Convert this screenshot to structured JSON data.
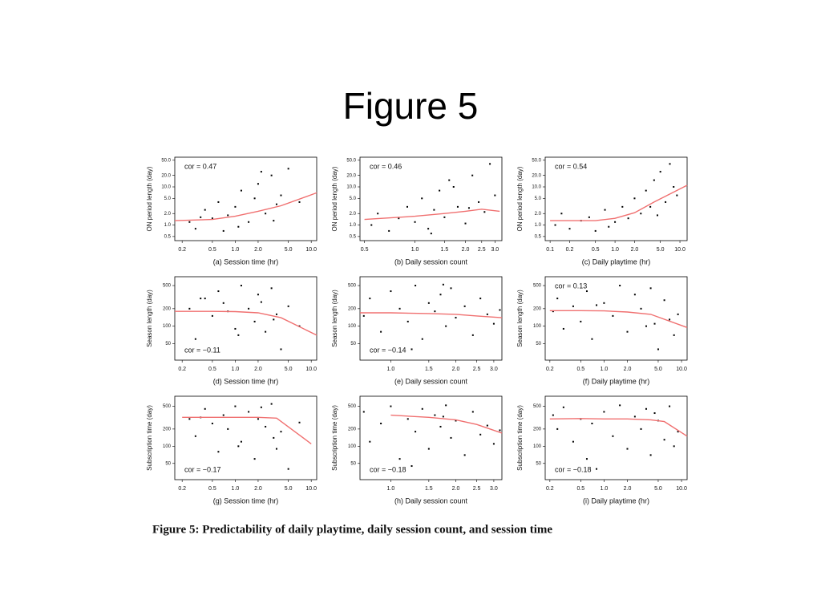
{
  "slide_title": "Figure 5",
  "caption": "Figure 5: Predictability of daily playtime, daily session count, and session time",
  "chart_data": [
    {
      "type": "scatter",
      "xlabel": "(a) Session time (hr)",
      "ylabel": "ON period length (day)",
      "annotation": "cor = 0.47",
      "annotation_corner": "top-left",
      "xscale": "log",
      "yscale": "log",
      "color": "#000000",
      "xlim": [
        0.16,
        11.8
      ],
      "ylim": [
        0.39,
        60
      ],
      "xticks": [
        0.2,
        0.5,
        {
          "value": 1,
          "label": "1.0"
        },
        {
          "value": 2,
          "label": "2.0"
        },
        {
          "value": 5,
          "label": "5.0"
        },
        {
          "value": 10,
          "label": "10.0"
        }
      ],
      "yticks": [
        0.5,
        {
          "value": 1,
          "label": "1.0"
        },
        {
          "value": 2,
          "label": "2.0"
        },
        {
          "value": 5,
          "label": "5.0"
        },
        {
          "value": 10,
          "label": "10.0"
        },
        {
          "value": 20,
          "label": "20.0"
        },
        {
          "value": 50,
          "label": "50.0"
        }
      ],
      "x": [
        0.25,
        0.3,
        0.4,
        0.5,
        0.6,
        0.7,
        0.8,
        1.0,
        1.2,
        1.5,
        1.8,
        2.0,
        2.5,
        3.0,
        3.5,
        4.0,
        5.0,
        7.0,
        0.35,
        1.1,
        2.2,
        3.2
      ],
      "values": [
        1.2,
        0.8,
        2.5,
        1.5,
        4.0,
        0.7,
        1.8,
        3.0,
        8.0,
        1.2,
        5.0,
        12.0,
        2.0,
        20.0,
        3.5,
        6.0,
        30.0,
        4.0,
        1.6,
        0.9,
        25.0,
        1.3
      ],
      "trend": {
        "color": "#f07070",
        "x": [
          0.16,
          0.5,
          1,
          2,
          4,
          11.8
        ],
        "values": [
          1.3,
          1.4,
          1.7,
          2.3,
          3.2,
          7
        ]
      }
    },
    {
      "type": "scatter",
      "xlabel": "(b) Daily session count",
      "ylabel": "ON period length (day)",
      "annotation": "cor = 0.46",
      "annotation_corner": "top-left",
      "xscale": "log",
      "yscale": "log",
      "color": "#000000",
      "xlim": [
        0.47,
        3.3
      ],
      "ylim": [
        0.39,
        60
      ],
      "xticks": [
        0.5,
        {
          "value": 1,
          "label": "1.0"
        },
        1.5,
        {
          "value": 2,
          "label": "2.0"
        },
        2.5,
        {
          "value": 3,
          "label": "3.0"
        }
      ],
      "yticks": [
        0.5,
        {
          "value": 1,
          "label": "1.0"
        },
        {
          "value": 2,
          "label": "2.0"
        },
        {
          "value": 5,
          "label": "5.0"
        },
        {
          "value": 10,
          "label": "10.0"
        },
        {
          "value": 20,
          "label": "20.0"
        },
        {
          "value": 50,
          "label": "50.0"
        }
      ],
      "x": [
        0.55,
        0.6,
        0.7,
        0.8,
        0.9,
        1.0,
        1.1,
        1.2,
        1.3,
        1.4,
        1.5,
        1.6,
        1.8,
        2.0,
        2.2,
        2.4,
        2.6,
        2.8,
        3.0,
        1.25,
        1.7,
        2.1
      ],
      "values": [
        1.0,
        2.0,
        0.7,
        1.5,
        3.0,
        1.2,
        5.0,
        0.8,
        2.5,
        8.0,
        1.6,
        15.0,
        3.0,
        1.1,
        20.0,
        4.0,
        2.2,
        40.0,
        6.0,
        0.6,
        10.0,
        2.8
      ],
      "trend": {
        "color": "#f07070",
        "x": [
          0.5,
          1,
          1.5,
          2,
          2.5,
          3.2
        ],
        "values": [
          1.4,
          1.7,
          2.0,
          2.3,
          2.6,
          2.3
        ]
      }
    },
    {
      "type": "scatter",
      "xlabel": "(c) Daily playtime (hr)",
      "ylabel": "ON period length (day)",
      "annotation": "cor = 0.54",
      "annotation_corner": "top-left",
      "xscale": "log",
      "yscale": "log",
      "color": "#000000",
      "xlim": [
        0.084,
        12.9
      ],
      "ylim": [
        0.39,
        60
      ],
      "xticks": [
        0.1,
        0.2,
        0.5,
        {
          "value": 1,
          "label": "1.0"
        },
        {
          "value": 2,
          "label": "2.0"
        },
        {
          "value": 5,
          "label": "5.0"
        },
        {
          "value": 10,
          "label": "10.0"
        }
      ],
      "yticks": [
        0.5,
        {
          "value": 1,
          "label": "1.0"
        },
        {
          "value": 2,
          "label": "2.0"
        },
        {
          "value": 5,
          "label": "5.0"
        },
        {
          "value": 10,
          "label": "10.0"
        },
        {
          "value": 20,
          "label": "20.0"
        },
        {
          "value": 50,
          "label": "50.0"
        }
      ],
      "x": [
        0.12,
        0.15,
        0.2,
        0.3,
        0.4,
        0.5,
        0.7,
        1.0,
        1.3,
        1.6,
        2.0,
        2.5,
        3.0,
        3.5,
        4.0,
        5.0,
        6.0,
        7.0,
        8.0,
        9.0,
        0.8,
        4.5
      ],
      "values": [
        1.0,
        2.0,
        0.8,
        1.3,
        1.6,
        0.7,
        2.5,
        1.2,
        3.0,
        1.5,
        5.0,
        2.0,
        8.0,
        3.0,
        15.0,
        25.0,
        4.0,
        40.0,
        10.0,
        6.0,
        0.9,
        1.8
      ],
      "trend": {
        "color": "#f07070",
        "x": [
          0.1,
          0.5,
          1,
          2,
          4,
          12.9
        ],
        "values": [
          1.3,
          1.3,
          1.5,
          2.1,
          4.0,
          11
        ]
      }
    },
    {
      "type": "scatter",
      "xlabel": "(d) Session time (hr)",
      "ylabel": "Season length (day)",
      "annotation": "cor = −0.11",
      "annotation_corner": "bottom-left",
      "xscale": "log",
      "yscale": "log",
      "color": "#000000",
      "xlim": [
        0.16,
        11.8
      ],
      "ylim": [
        26,
        710
      ],
      "xticks": [
        0.2,
        0.5,
        {
          "value": 1,
          "label": "1.0"
        },
        {
          "value": 2,
          "label": "2.0"
        },
        {
          "value": 5,
          "label": "5.0"
        },
        {
          "value": 10,
          "label": "10.0"
        }
      ],
      "yticks": [
        50,
        100,
        200,
        500
      ],
      "x": [
        0.25,
        0.3,
        0.4,
        0.5,
        0.6,
        0.7,
        0.8,
        1.0,
        1.2,
        1.5,
        1.8,
        2.0,
        2.5,
        3.0,
        3.5,
        4.0,
        5.0,
        7.0,
        0.35,
        1.1,
        2.2,
        3.2
      ],
      "values": [
        200,
        60,
        300,
        150,
        400,
        250,
        180,
        90,
        500,
        200,
        120,
        350,
        80,
        450,
        160,
        40,
        220,
        100,
        300,
        70,
        260,
        130
      ],
      "trend": {
        "color": "#f07070",
        "x": [
          0.16,
          0.5,
          1,
          2,
          4,
          11.8
        ],
        "values": [
          180,
          180,
          178,
          170,
          140,
          70
        ]
      }
    },
    {
      "type": "scatter",
      "xlabel": "(e) Daily session count",
      "ylabel": "Season length (day)",
      "annotation": "cor = −0.14",
      "annotation_corner": "bottom-left",
      "xscale": "log",
      "yscale": "log",
      "color": "#000000",
      "xlim": [
        0.72,
        3.27
      ],
      "ylim": [
        26,
        710
      ],
      "xticks": [
        {
          "value": 1,
          "label": "1.0"
        },
        1.5,
        {
          "value": 2,
          "label": "2.0"
        },
        2.5,
        {
          "value": 3,
          "label": "3.0"
        }
      ],
      "yticks": [
        50,
        100,
        200,
        500
      ],
      "x": [
        0.75,
        0.8,
        0.9,
        1.0,
        1.1,
        1.2,
        1.3,
        1.4,
        1.5,
        1.6,
        1.7,
        1.8,
        1.9,
        2.0,
        2.2,
        2.4,
        2.6,
        2.8,
        3.0,
        3.2,
        1.25,
        1.75
      ],
      "values": [
        150,
        300,
        80,
        400,
        200,
        120,
        500,
        60,
        250,
        180,
        350,
        100,
        450,
        140,
        220,
        70,
        300,
        160,
        110,
        190,
        40,
        520
      ],
      "trend": {
        "color": "#f07070",
        "x": [
          0.72,
          1,
          1.5,
          2,
          2.5,
          3.27
        ],
        "values": [
          170,
          170,
          165,
          160,
          150,
          140
        ]
      }
    },
    {
      "type": "scatter",
      "xlabel": "(f) Daily playtime (hr)",
      "ylabel": "Season length (day)",
      "annotation": "cor = 0.13",
      "annotation_corner": "top-left",
      "xscale": "log",
      "yscale": "log",
      "color": "#000000",
      "xlim": [
        0.174,
        11.8
      ],
      "ylim": [
        26,
        710
      ],
      "xticks": [
        0.2,
        0.5,
        {
          "value": 1,
          "label": "1.0"
        },
        {
          "value": 2,
          "label": "2.0"
        },
        {
          "value": 5,
          "label": "5.0"
        },
        {
          "value": 10,
          "label": "10.0"
        }
      ],
      "yticks": [
        50,
        100,
        200,
        500
      ],
      "x": [
        0.22,
        0.25,
        0.3,
        0.4,
        0.5,
        0.6,
        0.7,
        1.0,
        1.3,
        1.6,
        2.0,
        2.5,
        3.0,
        3.5,
        4.0,
        5.0,
        6.0,
        7.0,
        8.0,
        9.0,
        0.8,
        4.5
      ],
      "values": [
        180,
        300,
        90,
        220,
        120,
        400,
        60,
        250,
        150,
        500,
        80,
        350,
        200,
        100,
        450,
        40,
        280,
        130,
        70,
        160,
        230,
        110
      ],
      "trend": {
        "color": "#f07070",
        "x": [
          0.2,
          0.5,
          1,
          2,
          4,
          11.8
        ],
        "values": [
          185,
          185,
          183,
          175,
          160,
          95
        ]
      }
    },
    {
      "type": "scatter",
      "xlabel": "(g) Session time (hr)",
      "ylabel": "Subscription time (day)",
      "annotation": "cor = −0.17",
      "annotation_corner": "bottom-left",
      "xscale": "log",
      "yscale": "log",
      "color": "#000000",
      "xlim": [
        0.16,
        11.8
      ],
      "ylim": [
        26,
        750
      ],
      "xticks": [
        0.2,
        0.5,
        {
          "value": 1,
          "label": "1.0"
        },
        {
          "value": 2,
          "label": "2.0"
        },
        {
          "value": 5,
          "label": "5.0"
        },
        {
          "value": 10,
          "label": "10.0"
        }
      ],
      "yticks": [
        50,
        100,
        200,
        500
      ],
      "x": [
        0.25,
        0.3,
        0.4,
        0.5,
        0.6,
        0.7,
        0.8,
        1.0,
        1.2,
        1.5,
        1.8,
        2.0,
        2.5,
        3.0,
        3.5,
        4.0,
        5.0,
        7.0,
        0.35,
        1.1,
        2.2,
        3.2
      ],
      "values": [
        300,
        150,
        450,
        250,
        80,
        350,
        200,
        500,
        120,
        400,
        60,
        300,
        220,
        550,
        90,
        180,
        40,
        260,
        320,
        100,
        480,
        140
      ],
      "trend": {
        "color": "#f07070",
        "x": [
          0.2,
          0.5,
          1,
          2,
          3.5,
          10
        ],
        "values": [
          320,
          320,
          320,
          320,
          310,
          110
        ]
      }
    },
    {
      "type": "scatter",
      "xlabel": "(h) Daily session count",
      "ylabel": "Subscription time (day)",
      "annotation": "cor = −0.18",
      "annotation_corner": "bottom-left",
      "xscale": "log",
      "yscale": "log",
      "color": "#000000",
      "xlim": [
        0.72,
        3.27
      ],
      "ylim": [
        26,
        750
      ],
      "xticks": [
        {
          "value": 1,
          "label": "1.0"
        },
        1.5,
        {
          "value": 2,
          "label": "2.0"
        },
        2.5,
        {
          "value": 3,
          "label": "3.0"
        }
      ],
      "yticks": [
        50,
        100,
        200,
        500
      ],
      "x": [
        0.75,
        0.8,
        0.9,
        1.0,
        1.1,
        1.2,
        1.3,
        1.4,
        1.5,
        1.6,
        1.7,
        1.8,
        1.9,
        2.0,
        2.2,
        2.4,
        2.6,
        2.8,
        3.0,
        3.2,
        1.25,
        1.75
      ],
      "values": [
        400,
        120,
        250,
        500,
        60,
        300,
        180,
        450,
        90,
        350,
        220,
        520,
        140,
        280,
        70,
        400,
        160,
        230,
        110,
        190,
        45,
        330
      ],
      "trend": {
        "color": "#f07070",
        "x": [
          1,
          1.5,
          2,
          2.5,
          3.27
        ],
        "values": [
          350,
          320,
          290,
          240,
          170
        ]
      }
    },
    {
      "type": "scatter",
      "xlabel": "(i) Daily playtime (hr)",
      "ylabel": "Subscription time (day)",
      "annotation": "cor = −0.18",
      "annotation_corner": "bottom-left",
      "xscale": "log",
      "yscale": "log",
      "color": "#000000",
      "xlim": [
        0.174,
        11.8
      ],
      "ylim": [
        26,
        750
      ],
      "xticks": [
        0.2,
        0.5,
        {
          "value": 1,
          "label": "1.0"
        },
        {
          "value": 2,
          "label": "2.0"
        },
        {
          "value": 5,
          "label": "5.0"
        },
        {
          "value": 10,
          "label": "10.0"
        }
      ],
      "yticks": [
        50,
        100,
        200,
        500
      ],
      "x": [
        0.22,
        0.25,
        0.3,
        0.4,
        0.5,
        0.6,
        0.7,
        1.0,
        1.3,
        1.6,
        2.0,
        2.5,
        3.0,
        3.5,
        4.0,
        5.0,
        6.0,
        7.0,
        8.0,
        9.0,
        0.8,
        4.5
      ],
      "values": [
        350,
        200,
        480,
        120,
        300,
        60,
        250,
        400,
        150,
        520,
        90,
        330,
        200,
        450,
        70,
        280,
        130,
        500,
        100,
        180,
        40,
        380
      ],
      "trend": {
        "color": "#f07070",
        "x": [
          0.2,
          0.5,
          1,
          2,
          4,
          6,
          11.8
        ],
        "values": [
          300,
          305,
          300,
          300,
          290,
          270,
          150
        ]
      }
    }
  ]
}
